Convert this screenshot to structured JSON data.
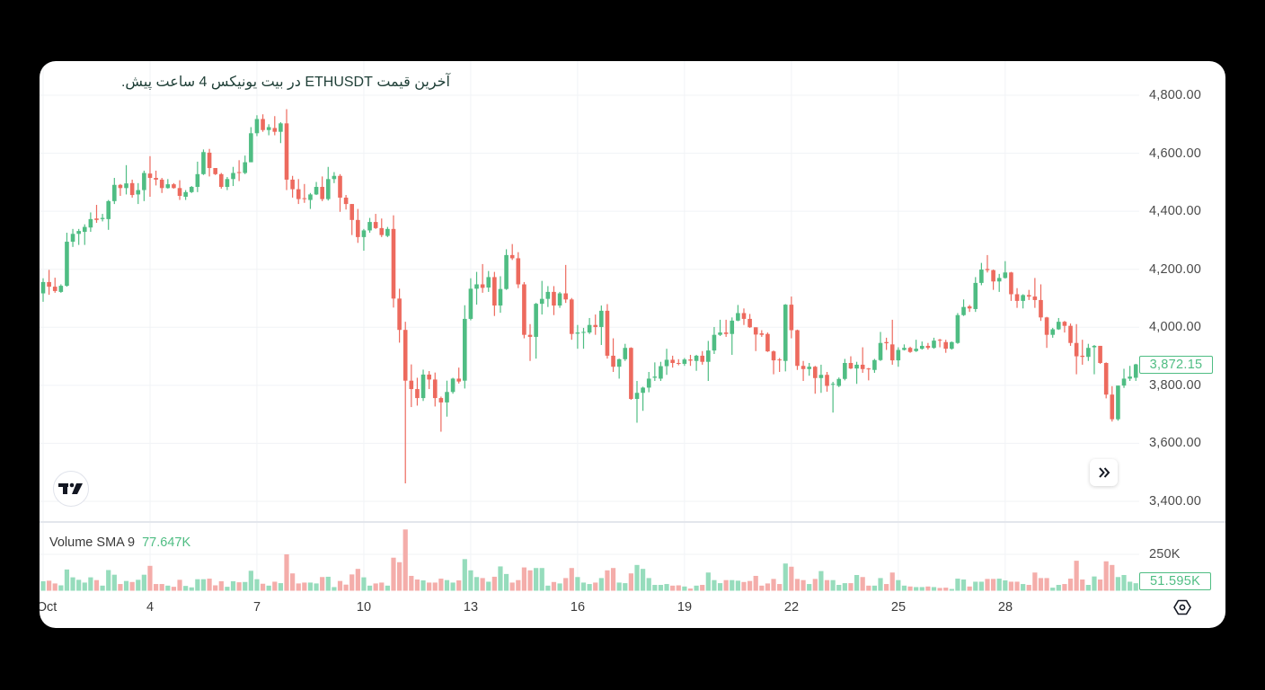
{
  "header": {
    "title": "آخرین قیمت ETHUSDT در بیت یونیکس 4 ساعت پیش."
  },
  "price_axis": {
    "ticks": [
      "4,800.00",
      "4,600.00",
      "4,400.00",
      "4,200.00",
      "4,000.00",
      "3,800.00",
      "3,600.00",
      "3,400.00"
    ],
    "last_price": "3,872.15"
  },
  "volume": {
    "indicator_label": "Volume SMA 9",
    "indicator_value": "77.647K",
    "axis_tick": "250K",
    "last_volume": "51.595K"
  },
  "time_axis": {
    "labels": [
      "Oct",
      "4",
      "7",
      "10",
      "13",
      "16",
      "19",
      "22",
      "25",
      "28"
    ]
  },
  "icons": {
    "logo": "tradingview-logo-icon",
    "scroll": "double-chevron-right-icon",
    "settings": "hexagon-settings-icon"
  },
  "colors": {
    "up": "#4fbd83",
    "down": "#ed6a5e",
    "volume_up": "#96dcbc",
    "volume_down": "#f4adaa",
    "grid": "#f1f3f6",
    "pane_separator": "#e3e6ec",
    "title": "#1f3f37"
  },
  "chart_data": {
    "type": "candlestick",
    "title": "آخرین قیمت ETHUSDT در بیت یونیکس 4 ساعت پیش.",
    "xlabel": "",
    "ylabel": "",
    "x_tick_labels": [
      "Oct",
      "4",
      "7",
      "10",
      "13",
      "16",
      "19",
      "22",
      "25",
      "28"
    ],
    "x_tick_days": [
      1,
      4,
      7,
      10,
      13,
      16,
      19,
      22,
      25,
      28
    ],
    "candles_per_day": 6,
    "y_ticks": [
      4800,
      4600,
      4400,
      4200,
      4000,
      3800,
      3600,
      3400
    ],
    "ylim": [
      3400,
      4800
    ],
    "volume_ticks_k": [
      250
    ],
    "grid": true,
    "legend": "Volume SMA 9 77.647K",
    "last_close": 3872.15,
    "last_volume_k": 51.595,
    "volume_sma9_k": 77.647,
    "candle_fields": [
      "open",
      "high",
      "low",
      "close",
      "volume_k"
    ],
    "candles": [
      [
        4117,
        4169,
        4088,
        4156,
        65
      ],
      [
        4156,
        4198,
        4112,
        4140,
        69
      ],
      [
        4140,
        4171,
        4119,
        4125,
        50
      ],
      [
        4122,
        4148,
        4119,
        4143,
        37
      ],
      [
        4143,
        4326,
        4140,
        4295,
        146
      ],
      [
        4295,
        4339,
        4277,
        4322,
        92
      ],
      [
        4322,
        4339,
        4284,
        4332,
        75
      ],
      [
        4329,
        4355,
        4284,
        4346,
        56
      ],
      [
        4344,
        4396,
        4329,
        4373,
        92
      ],
      [
        4375,
        4422,
        4360,
        4370,
        73
      ],
      [
        4373,
        4391,
        4365,
        4377,
        35
      ],
      [
        4373,
        4439,
        4336,
        4435,
        142
      ],
      [
        4435,
        4515,
        4425,
        4491,
        110
      ],
      [
        4491,
        4494,
        4453,
        4480,
        46
      ],
      [
        4480,
        4559,
        4458,
        4496,
        67
      ],
      [
        4497,
        4509,
        4447,
        4456,
        60
      ],
      [
        4458,
        4497,
        4425,
        4473,
        75
      ],
      [
        4473,
        4540,
        4435,
        4532,
        110
      ],
      [
        4530,
        4590,
        4450,
        4515,
        171
      ],
      [
        4515,
        4540,
        4489,
        4509,
        46
      ],
      [
        4509,
        4515,
        4463,
        4480,
        46
      ],
      [
        4480,
        4511,
        4478,
        4493,
        35
      ],
      [
        4493,
        4497,
        4478,
        4480,
        27
      ],
      [
        4480,
        4507,
        4439,
        4453,
        75
      ],
      [
        4450,
        4473,
        4439,
        4466,
        33
      ],
      [
        4466,
        4487,
        4463,
        4484,
        23
      ],
      [
        4484,
        4571,
        4466,
        4528,
        79
      ],
      [
        4528,
        4613,
        4525,
        4604,
        79
      ],
      [
        4602,
        4615,
        4520,
        4549,
        83
      ],
      [
        4549,
        4549,
        4525,
        4528,
        37
      ],
      [
        4528,
        4532,
        4478,
        4484,
        65
      ],
      [
        4484,
        4518,
        4473,
        4511,
        27
      ],
      [
        4511,
        4553,
        4487,
        4532,
        65
      ],
      [
        4535,
        4576,
        4504,
        4532,
        58
      ],
      [
        4532,
        4592,
        4528,
        4569,
        60
      ],
      [
        4569,
        4690,
        4569,
        4669,
        137
      ],
      [
        4669,
        4731,
        4659,
        4718,
        79
      ],
      [
        4718,
        4734,
        4674,
        4680,
        48
      ],
      [
        4680,
        4700,
        4662,
        4690,
        35
      ],
      [
        4687,
        4728,
        4662,
        4674,
        62
      ],
      [
        4674,
        4707,
        4635,
        4703,
        52
      ],
      [
        4703,
        4752,
        4473,
        4509,
        250
      ],
      [
        4509,
        4522,
        4447,
        4476,
        119
      ],
      [
        4476,
        4511,
        4425,
        4442,
        50
      ],
      [
        4445,
        4494,
        4429,
        4442,
        56
      ],
      [
        4439,
        4463,
        4408,
        4458,
        56
      ],
      [
        4458,
        4501,
        4456,
        4484,
        50
      ],
      [
        4484,
        4520,
        4435,
        4442,
        94
      ],
      [
        4442,
        4553,
        4437,
        4511,
        96
      ],
      [
        4511,
        4535,
        4497,
        4522,
        25
      ],
      [
        4522,
        4528,
        4398,
        4447,
        67
      ],
      [
        4447,
        4456,
        4406,
        4425,
        42
      ],
      [
        4425,
        4425,
        4318,
        4370,
        112
      ],
      [
        4370,
        4408,
        4291,
        4311,
        150
      ],
      [
        4311,
        4339,
        4264,
        4334,
        92
      ],
      [
        4334,
        4377,
        4326,
        4363,
        35
      ],
      [
        4363,
        4391,
        4339,
        4342,
        50
      ],
      [
        4342,
        4375,
        4311,
        4318,
        56
      ],
      [
        4315,
        4346,
        4311,
        4339,
        35
      ],
      [
        4339,
        4386,
        4068,
        4099,
        227
      ],
      [
        4099,
        4133,
        3947,
        3991,
        196
      ],
      [
        3991,
        4019,
        3462,
        3816,
        421
      ],
      [
        3816,
        3872,
        3725,
        3787,
        102
      ],
      [
        3787,
        3826,
        3730,
        3756,
        77
      ],
      [
        3756,
        3854,
        3746,
        3837,
        71
      ],
      [
        3837,
        3849,
        3787,
        3820,
        56
      ],
      [
        3820,
        3844,
        3727,
        3756,
        56
      ],
      [
        3756,
        3761,
        3640,
        3741,
        83
      ],
      [
        3741,
        3816,
        3692,
        3777,
        73
      ],
      [
        3777,
        3826,
        3771,
        3823,
        56
      ],
      [
        3823,
        3861,
        3806,
        3813,
        71
      ],
      [
        3816,
        4076,
        3789,
        4029,
        217
      ],
      [
        4029,
        4169,
        4024,
        4133,
        140
      ],
      [
        4133,
        4191,
        4078,
        4148,
        94
      ],
      [
        4148,
        4218,
        4119,
        4136,
        87
      ],
      [
        4137,
        4194,
        4122,
        4173,
        62
      ],
      [
        4173,
        4191,
        4039,
        4075,
        96
      ],
      [
        4075,
        4176,
        4050,
        4132,
        167
      ],
      [
        4132,
        4269,
        4129,
        4249,
        115
      ],
      [
        4249,
        4287,
        4232,
        4238,
        56
      ],
      [
        4238,
        4259,
        4135,
        4148,
        73
      ],
      [
        4148,
        4156,
        3962,
        3974,
        160
      ],
      [
        3974,
        4011,
        3884,
        3967,
        140
      ],
      [
        3967,
        4084,
        3892,
        4081,
        156
      ],
      [
        4081,
        4160,
        4044,
        4098,
        156
      ],
      [
        4098,
        4142,
        4070,
        4122,
        35
      ],
      [
        4122,
        4142,
        4042,
        4075,
        60
      ],
      [
        4075,
        4122,
        4067,
        4117,
        50
      ],
      [
        4117,
        4215,
        4084,
        4096,
        87
      ],
      [
        4096,
        4101,
        3957,
        3977,
        156
      ],
      [
        3978,
        4008,
        3926,
        3982,
        94
      ],
      [
        3981,
        3998,
        3926,
        3984,
        56
      ],
      [
        3982,
        4032,
        3977,
        4008,
        46
      ],
      [
        4008,
        4044,
        3974,
        4001,
        56
      ],
      [
        4001,
        4075,
        3939,
        4057,
        87
      ],
      [
        4057,
        4080,
        3892,
        3902,
        140
      ],
      [
        3902,
        3962,
        3846,
        3864,
        156
      ],
      [
        3864,
        3892,
        3823,
        3890,
        56
      ],
      [
        3890,
        3943,
        3884,
        3929,
        52
      ],
      [
        3929,
        3931,
        3750,
        3753,
        119
      ],
      [
        3753,
        3815,
        3671,
        3774,
        177
      ],
      [
        3774,
        3795,
        3712,
        3792,
        150
      ],
      [
        3792,
        3846,
        3776,
        3823,
        87
      ],
      [
        3826,
        3879,
        3815,
        3830,
        40
      ],
      [
        3823,
        3881,
        3815,
        3866,
        40
      ],
      [
        3866,
        3926,
        3836,
        3888,
        46
      ],
      [
        3888,
        3902,
        3861,
        3877,
        35
      ],
      [
        3877,
        3890,
        3869,
        3874,
        37
      ],
      [
        3874,
        3894,
        3867,
        3889,
        29
      ],
      [
        3889,
        3905,
        3867,
        3885,
        15
      ],
      [
        3884,
        3905,
        3850,
        3902,
        35
      ],
      [
        3902,
        3918,
        3871,
        3881,
        40
      ],
      [
        3881,
        3953,
        3815,
        3920,
        125
      ],
      [
        3920,
        4001,
        3908,
        3974,
        73
      ],
      [
        3974,
        4026,
        3970,
        3982,
        52
      ],
      [
        3982,
        4026,
        3967,
        3977,
        73
      ],
      [
        3977,
        4034,
        3905,
        4023,
        73
      ],
      [
        4023,
        4077,
        4021,
        4049,
        69
      ],
      [
        4049,
        4065,
        4008,
        4029,
        60
      ],
      [
        4029,
        4046,
        3998,
        4000,
        67
      ],
      [
        4000,
        4000,
        3918,
        3975,
        102
      ],
      [
        3979,
        3990,
        3967,
        3974,
        35
      ],
      [
        3977,
        3982,
        3915,
        3917,
        50
      ],
      [
        3917,
        3920,
        3838,
        3886,
        81
      ],
      [
        3889,
        3894,
        3846,
        3886,
        46
      ],
      [
        3884,
        4080,
        3848,
        4078,
        187
      ],
      [
        4078,
        4106,
        3962,
        3990,
        165
      ],
      [
        3990,
        3992,
        3853,
        3867,
        81
      ],
      [
        3867,
        3884,
        3815,
        3856,
        73
      ],
      [
        3856,
        3877,
        3833,
        3864,
        46
      ],
      [
        3864,
        3867,
        3771,
        3825,
        81
      ],
      [
        3825,
        3871,
        3774,
        3836,
        135
      ],
      [
        3836,
        3846,
        3778,
        3798,
        73
      ],
      [
        3802,
        3812,
        3706,
        3805,
        73
      ],
      [
        3798,
        3827,
        3794,
        3822,
        40
      ],
      [
        3822,
        3891,
        3817,
        3877,
        52
      ],
      [
        3877,
        3900,
        3856,
        3858,
        52
      ],
      [
        3858,
        3881,
        3805,
        3871,
        108
      ],
      [
        3871,
        3931,
        3843,
        3856,
        94
      ],
      [
        3858,
        3860,
        3817,
        3855,
        35
      ],
      [
        3853,
        3891,
        3843,
        3887,
        35
      ],
      [
        3887,
        3984,
        3884,
        3946,
        87
      ],
      [
        3949,
        3964,
        3922,
        3945,
        46
      ],
      [
        3941,
        4026,
        3871,
        3886,
        125
      ],
      [
        3886,
        3931,
        3864,
        3922,
        73
      ],
      [
        3922,
        3941,
        3920,
        3929,
        35
      ],
      [
        3929,
        3933,
        3912,
        3915,
        29
      ],
      [
        3918,
        3957,
        3915,
        3926,
        25
      ],
      [
        3926,
        3951,
        3923,
        3936,
        25
      ],
      [
        3936,
        3946,
        3923,
        3929,
        29
      ],
      [
        3929,
        3964,
        3926,
        3954,
        25
      ],
      [
        3957,
        3960,
        3931,
        3954,
        19
      ],
      [
        3949,
        3957,
        3912,
        3926,
        21
      ],
      [
        3926,
        3951,
        3923,
        3949,
        12
      ],
      [
        3946,
        4049,
        3943,
        4042,
        83
      ],
      [
        4042,
        4096,
        4039,
        4070,
        77
      ],
      [
        4072,
        4077,
        4053,
        4065,
        29
      ],
      [
        4063,
        4173,
        4053,
        4153,
        62
      ],
      [
        4153,
        4222,
        4145,
        4199,
        62
      ],
      [
        4201,
        4249,
        4189,
        4197,
        81
      ],
      [
        4197,
        4199,
        4129,
        4158,
        81
      ],
      [
        4158,
        4184,
        4122,
        4170,
        83
      ],
      [
        4170,
        4228,
        4168,
        4189,
        71
      ],
      [
        4189,
        4191,
        4091,
        4114,
        62
      ],
      [
        4114,
        4135,
        4067,
        4091,
        62
      ],
      [
        4091,
        4114,
        4065,
        4111,
        46
      ],
      [
        4111,
        4129,
        4094,
        4106,
        40
      ],
      [
        4106,
        4170,
        4067,
        4094,
        125
      ],
      [
        4094,
        4148,
        4022,
        4034,
        87
      ],
      [
        4034,
        4036,
        3929,
        3974,
        87
      ],
      [
        3974,
        3998,
        3964,
        3993,
        21
      ],
      [
        3993,
        4032,
        3991,
        4019,
        40
      ],
      [
        4019,
        4022,
        3982,
        4005,
        46
      ],
      [
        4005,
        4013,
        3936,
        3946,
        83
      ],
      [
        3946,
        4011,
        3838,
        3900,
        206
      ],
      [
        3902,
        3957,
        3871,
        3898,
        77
      ],
      [
        3898,
        3943,
        3884,
        3929,
        40
      ],
      [
        3931,
        3939,
        3838,
        3936,
        98
      ],
      [
        3936,
        3936,
        3874,
        3877,
        77
      ],
      [
        3877,
        3879,
        3755,
        3768,
        202
      ],
      [
        3768,
        3797,
        3675,
        3683,
        177
      ],
      [
        3683,
        3799,
        3678,
        3799,
        94
      ],
      [
        3799,
        3857,
        3791,
        3823,
        108
      ],
      [
        3823,
        3867,
        3815,
        3830,
        62
      ],
      [
        3826,
        3874,
        3815,
        3872.15,
        51.595
      ]
    ]
  }
}
